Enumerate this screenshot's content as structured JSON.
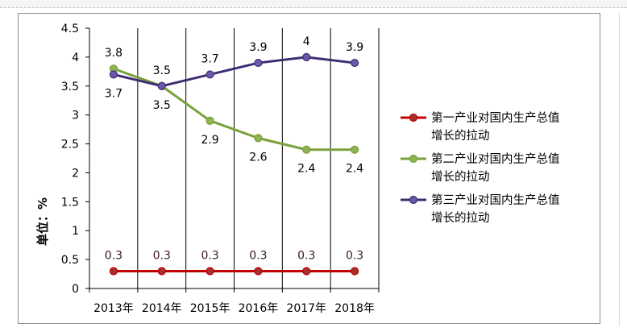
{
  "chart_data": {
    "type": "line",
    "categories": [
      "2013年",
      "2014年",
      "2015年",
      "2016年",
      "2017年",
      "2018年"
    ],
    "series": [
      {
        "name": "第一产业对国内生产总值增长的拉动",
        "name_lines": [
          "第一产业对国内生产总值",
          "增长的拉动"
        ],
        "values": [
          0.3,
          0.3,
          0.3,
          0.3,
          0.3,
          0.3
        ],
        "color": "#c00000",
        "marker_fill": "#a5302f",
        "label_pos": "above"
      },
      {
        "name": "第二产业对国内生产总值增长的拉动",
        "name_lines": [
          "第二产业对国内生产总值",
          "增长的拉动"
        ],
        "values": [
          3.8,
          3.5,
          2.9,
          2.6,
          2.4,
          2.4
        ],
        "color": "#7aa03c",
        "marker_fill": "#8fb351",
        "label_pos": "mixed"
      },
      {
        "name": "第三产业对国内生产总值增长的拉动",
        "name_lines": [
          "第三产业对国内生产总值",
          "增长的拉动"
        ],
        "values": [
          3.7,
          3.5,
          3.7,
          3.9,
          4.0,
          3.9
        ],
        "color": "#3f2d73",
        "marker_fill": "#6a58a8",
        "label_pos": "mixed"
      }
    ],
    "ylabel": "单位：%",
    "ylim": [
      0,
      4.5
    ],
    "ytick_step": 0.5,
    "yticks": [
      "0",
      "0.5",
      "1",
      "1.5",
      "2",
      "2.5",
      "3",
      "3.5",
      "4",
      "4.5"
    ],
    "grid": "vertical",
    "legend": "right"
  }
}
